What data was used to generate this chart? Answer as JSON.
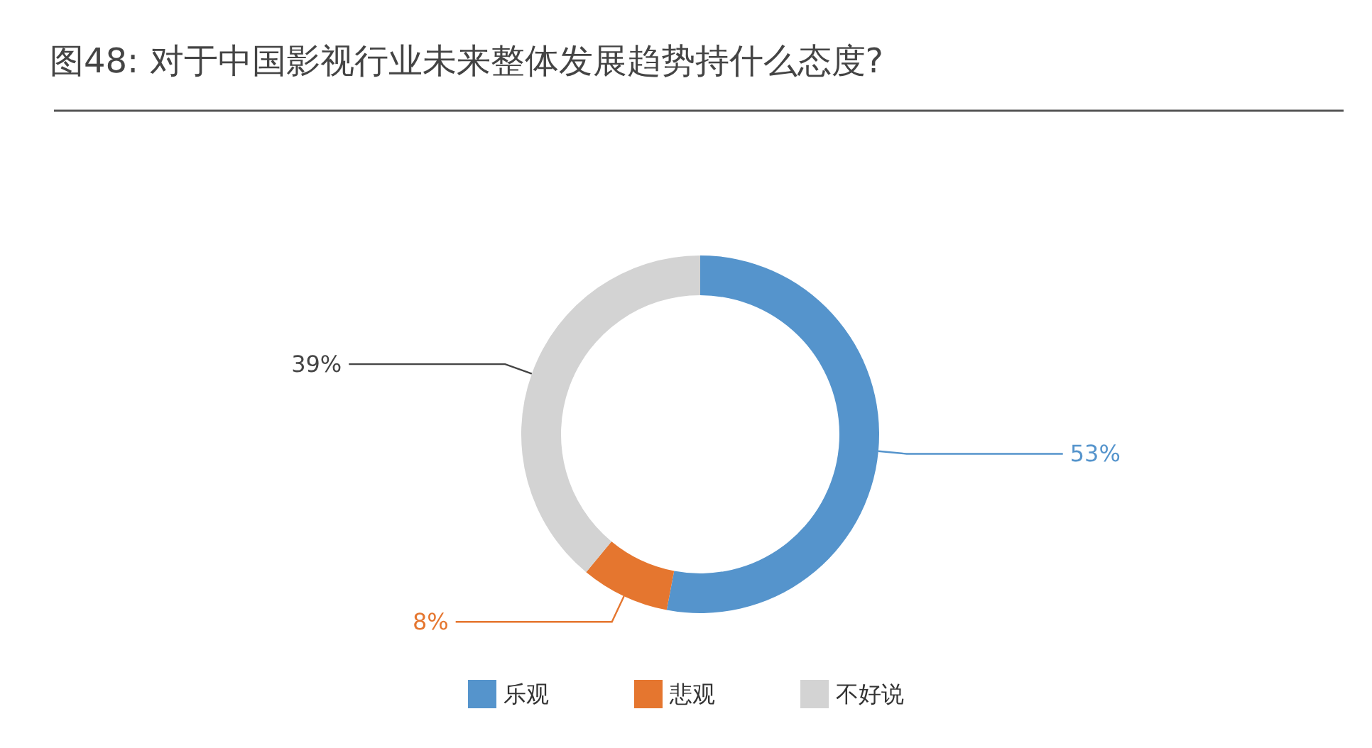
{
  "chart_data": {
    "type": "donut",
    "title": "图48: 对于中国影视行业未来整体发展趋势持什么态度?",
    "categories": [
      "乐观",
      "悲观",
      "不好说"
    ],
    "values": [
      53,
      8,
      39
    ],
    "colors": [
      "#5594cc",
      "#e5762f",
      "#d3d3d3"
    ],
    "value_labels": [
      "53%",
      "8%",
      "39%"
    ],
    "legend": "bottom"
  }
}
